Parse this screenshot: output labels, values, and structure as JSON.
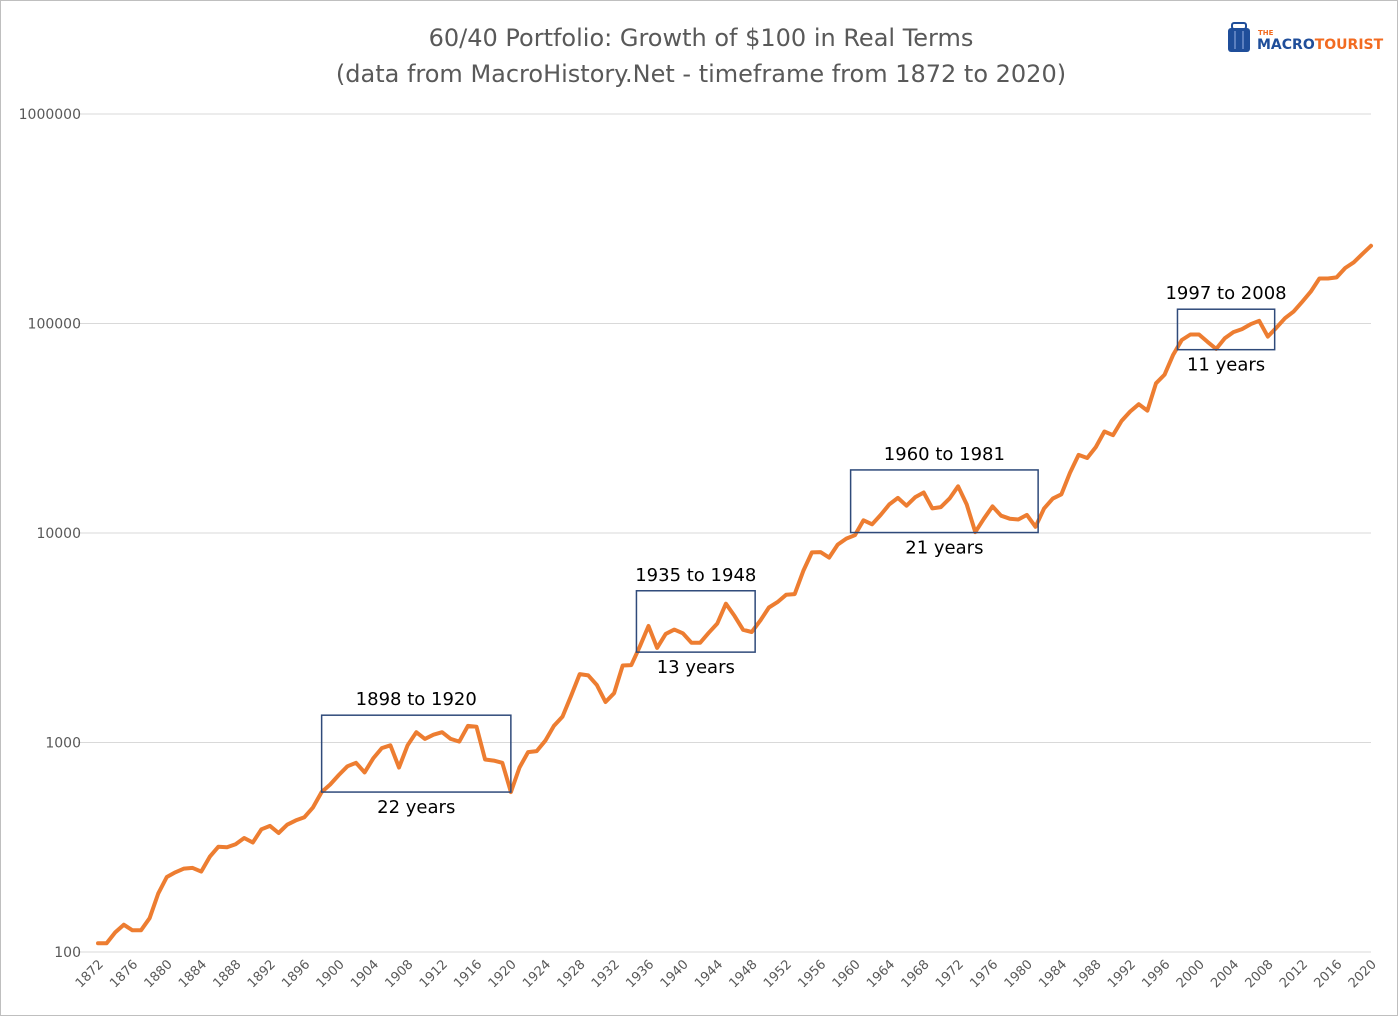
{
  "chart_data": {
    "type": "line",
    "title": "60/40 Portfolio: Growth of $100 in Real Terms",
    "subtitle": "(data from MacroHistory.Net - timeframe from 1872 to 2020)",
    "y_scale": "log",
    "ylim": [
      100,
      1000000
    ],
    "y_ticks": [
      "100",
      "1000",
      "10000",
      "100000",
      "1000000"
    ],
    "xlim": [
      1872,
      2020
    ],
    "x_ticks": [
      "1872",
      "1876",
      "1880",
      "1884",
      "1888",
      "1892",
      "1896",
      "1900",
      "1904",
      "1908",
      "1912",
      "1916",
      "1920",
      "1924",
      "1928",
      "1932",
      "1936",
      "1940",
      "1944",
      "1948",
      "1952",
      "1956",
      "1960",
      "1964",
      "1968",
      "1972",
      "1976",
      "1980",
      "1984",
      "1988",
      "1992",
      "1996",
      "2000",
      "2004",
      "2008",
      "2012",
      "2016",
      "2020"
    ],
    "grid": "horizontal",
    "line_color": "#ED7D31",
    "box_color": "#2F4A7A",
    "series": [
      {
        "x": [
          1872,
          1873,
          1874,
          1875,
          1876,
          1877,
          1878,
          1879,
          1880,
          1881,
          1882,
          1883,
          1884,
          1885,
          1886,
          1887,
          1888,
          1889,
          1890,
          1891,
          1892,
          1893,
          1894,
          1895,
          1896,
          1897,
          1898,
          1899,
          1900,
          1901,
          1902,
          1903,
          1904,
          1905,
          1906,
          1907,
          1908,
          1909,
          1910,
          1911,
          1912,
          1913,
          1914,
          1915,
          1916,
          1917,
          1918,
          1919,
          1920,
          1921,
          1922,
          1923,
          1924,
          1925,
          1926,
          1927,
          1928,
          1929,
          1930,
          1931,
          1932,
          1933,
          1934,
          1935,
          1936,
          1937,
          1938,
          1939,
          1940,
          1941,
          1942,
          1943,
          1944,
          1945,
          1946,
          1947,
          1948,
          1949,
          1950,
          1951,
          1952,
          1953,
          1954,
          1955,
          1956,
          1957,
          1958,
          1959,
          1960,
          1961,
          1962,
          1963,
          1964,
          1965,
          1966,
          1967,
          1968,
          1969,
          1970,
          1971,
          1972,
          1973,
          1974,
          1975,
          1976,
          1977,
          1978,
          1979,
          1980,
          1981,
          1982,
          1983,
          1984,
          1985,
          1986,
          1987,
          1988,
          1989,
          1990,
          1991,
          1992,
          1993,
          1994,
          1995,
          1996,
          1997,
          1998,
          1999,
          2000,
          2001,
          2002,
          2003,
          2004,
          2005,
          2006,
          2007,
          2008,
          2009,
          2010,
          2011,
          2012,
          2013,
          2014,
          2015,
          2016,
          2017,
          2018,
          2019,
          2020
        ],
        "values": [
          110,
          110,
          124,
          135,
          127,
          127,
          145,
          190,
          228,
          240,
          250,
          252,
          242,
          285,
          318,
          316,
          327,
          350,
          333,
          385,
          400,
          370,
          405,
          425,
          440,
          490,
          580,
          630,
          700,
          770,
          800,
          720,
          840,
          940,
          970,
          760,
          970,
          1120,
          1040,
          1090,
          1120,
          1040,
          1010,
          1200,
          1190,
          830,
          820,
          800,
          580,
          760,
          900,
          910,
          1020,
          1200,
          1330,
          1670,
          2120,
          2090,
          1880,
          1560,
          1720,
          2330,
          2340,
          2880,
          3600,
          2830,
          3300,
          3460,
          3320,
          2990,
          2990,
          3340,
          3700,
          4600,
          4020,
          3450,
          3370,
          3820,
          4410,
          4680,
          5070,
          5110,
          6590,
          8080,
          8110,
          7630,
          8800,
          9400,
          9760,
          11500,
          11000,
          12200,
          13700,
          14700,
          13500,
          14800,
          15600,
          13100,
          13300,
          14600,
          16700,
          13700,
          10100,
          11700,
          13400,
          12100,
          11700,
          11600,
          12200,
          10700,
          13100,
          14600,
          15300,
          19400,
          23600,
          22800,
          25700,
          30500,
          29300,
          34300,
          38000,
          41200,
          38400,
          51800,
          57000,
          71000,
          83400,
          88600,
          88600,
          81700,
          75600,
          85000,
          91000,
          94000,
          99200,
          103000,
          86600,
          95500,
          106000,
          114000,
          127000,
          142000,
          164000,
          164000,
          166000,
          184000,
          196000,
          215000,
          235000
        ]
      }
    ],
    "annotations": [
      {
        "label": "1898 to 1920",
        "duration": "22 years",
        "x_start": 1898,
        "x_end": 1920,
        "y_low": 580,
        "y_high": 1350
      },
      {
        "label": "1935 to 1948",
        "duration": "13 years",
        "x_start": 1934.6,
        "x_end": 1948.4,
        "y_low": 2700,
        "y_high": 5300
      },
      {
        "label": "1960 to 1981",
        "duration": "21 years",
        "x_start": 1959.5,
        "x_end": 1981.3,
        "y_low": 10050,
        "y_high": 20000
      },
      {
        "label": "1997 to 2008",
        "duration": "11 years",
        "x_start": 1997.5,
        "x_end": 2008.8,
        "y_low": 75000,
        "y_high": 117000
      }
    ]
  },
  "logo": {
    "the": "THE",
    "macro": "MACRO",
    "tourist": "TOURIST",
    "macro_color": "#1F4E9A",
    "tourist_color": "#F26B21"
  }
}
